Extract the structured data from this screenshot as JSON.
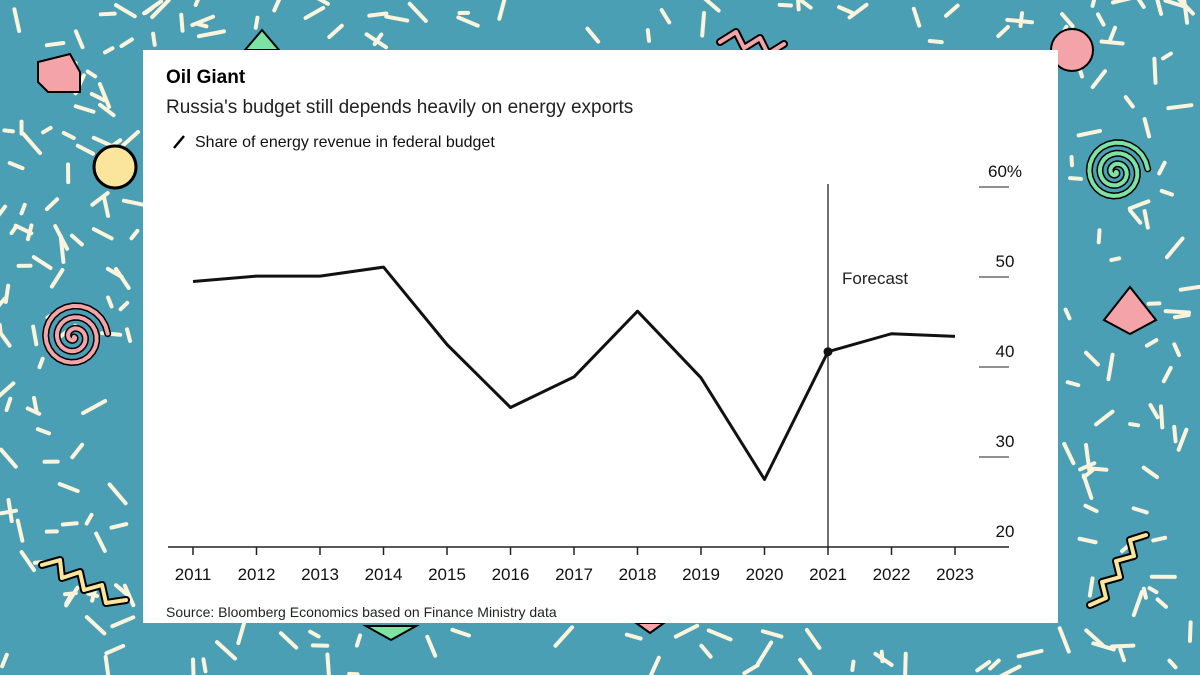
{
  "colors": {
    "background": "#4a9fb5",
    "card": "#ffffff",
    "line": "#111111",
    "confetti_cream": "#fbf4dc",
    "shape_pink": "#f4a4a8",
    "shape_yellow": "#fbe49b",
    "shape_green": "#7de3a4"
  },
  "chart_data": {
    "type": "line",
    "title": "Oil Giant",
    "subtitle": "Russia's budget still depends heavily on energy exports",
    "legend": [
      "Share of energy revenue in federal budget"
    ],
    "categories": [
      "2011",
      "2012",
      "2013",
      "2014",
      "2015",
      "2016",
      "2017",
      "2018",
      "2019",
      "2020",
      "2021",
      "2022",
      "2023"
    ],
    "series": [
      {
        "name": "Share of energy revenue in federal budget",
        "values": [
          49.5,
          50.1,
          50.1,
          51.1,
          42.5,
          35.5,
          38.9,
          46.2,
          38.8,
          27.5,
          41.7,
          43.7,
          43.4
        ]
      }
    ],
    "ylim": [
      20,
      60
    ],
    "yticks": [
      {
        "value": 20,
        "label": "20"
      },
      {
        "value": 30,
        "label": "30"
      },
      {
        "value": 40,
        "label": "40"
      },
      {
        "value": 50,
        "label": "50"
      },
      {
        "value": 60,
        "label": "60%"
      }
    ],
    "forecast_start": "2021",
    "forecast_label": "Forecast",
    "highlight_point": "2021",
    "xlabel": "",
    "ylabel": "",
    "source": "Source: Bloomberg Economics based on Finance Ministry data"
  }
}
